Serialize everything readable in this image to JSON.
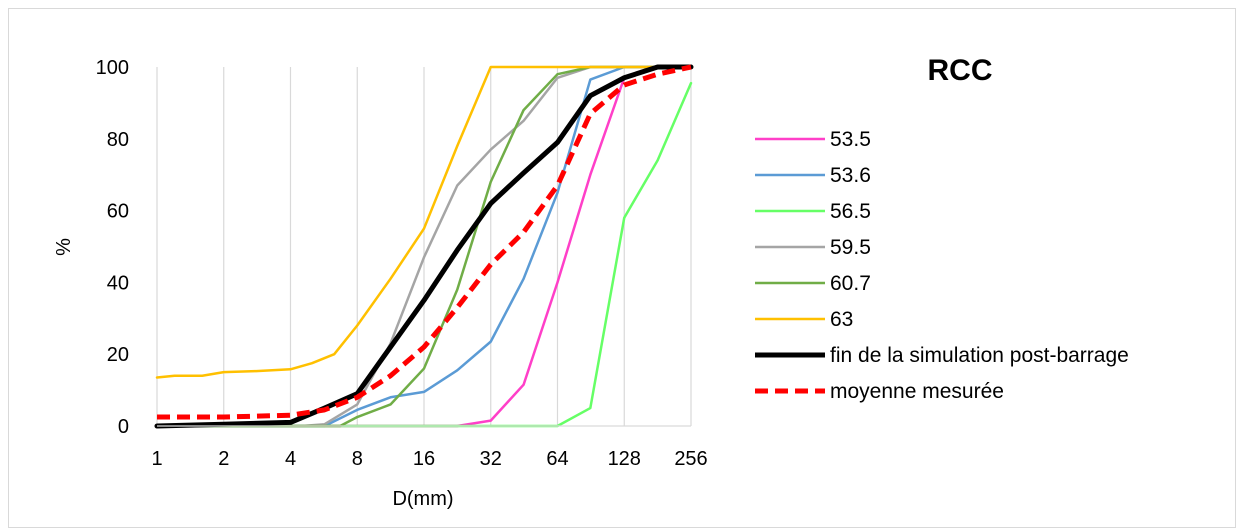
{
  "chart_data": {
    "type": "line",
    "title": "RCC",
    "xlabel": "D(mm)",
    "ylabel": "%",
    "x_scale": "log2",
    "xlim": [
      1,
      256
    ],
    "ylim": [
      0,
      100
    ],
    "x_ticks": [
      "1",
      "2",
      "4",
      "8",
      "16",
      "32",
      "64",
      "128",
      "256"
    ],
    "y_ticks": [
      "0",
      "20",
      "40",
      "60",
      "80",
      "100"
    ],
    "grid": "vertical",
    "legend_position": "right",
    "series": [
      {
        "name": "53.5",
        "color": "#ff3fc8",
        "width": 2.5,
        "dash": "",
        "points": [
          [
            1,
            0
          ],
          [
            22.6,
            0
          ],
          [
            32,
            1.5
          ],
          [
            45,
            11.5
          ],
          [
            64,
            40
          ],
          [
            90,
            70
          ],
          [
            128,
            97
          ],
          [
            181,
            100
          ],
          [
            256,
            100
          ]
        ]
      },
      {
        "name": "53.6",
        "color": "#5b9bd5",
        "width": 2.5,
        "dash": "",
        "points": [
          [
            1,
            0
          ],
          [
            4,
            0
          ],
          [
            5.7,
            0
          ],
          [
            8,
            4.5
          ],
          [
            11.3,
            8
          ],
          [
            16,
            9.5
          ],
          [
            22.6,
            15.5
          ],
          [
            32,
            23.5
          ],
          [
            45,
            41
          ],
          [
            64,
            65
          ],
          [
            90,
            96.5
          ],
          [
            128,
            100
          ],
          [
            181,
            100
          ],
          [
            256,
            100
          ]
        ]
      },
      {
        "name": "56.5",
        "color": "#66ff66",
        "width": 2.5,
        "dash": "",
        "points": [
          [
            1,
            0
          ],
          [
            64,
            0
          ],
          [
            90,
            5
          ],
          [
            128,
            58
          ],
          [
            181,
            74
          ],
          [
            256,
            95.5
          ]
        ]
      },
      {
        "name": "59.5",
        "color": "#a5a5a5",
        "width": 2.5,
        "dash": "",
        "points": [
          [
            1,
            0
          ],
          [
            4.5,
            0
          ],
          [
            5.7,
            0.5
          ],
          [
            8,
            6
          ],
          [
            11.3,
            23
          ],
          [
            16,
            47
          ],
          [
            22.6,
            67
          ],
          [
            32,
            77
          ],
          [
            45,
            85
          ],
          [
            64,
            97
          ],
          [
            90,
            100
          ],
          [
            128,
            100
          ],
          [
            181,
            100
          ],
          [
            256,
            100
          ]
        ]
      },
      {
        "name": "60.7",
        "color": "#70ad47",
        "width": 2.5,
        "dash": "",
        "points": [
          [
            1,
            0
          ],
          [
            6.7,
            0
          ],
          [
            8,
            2.5
          ],
          [
            11.3,
            6
          ],
          [
            16,
            16
          ],
          [
            22.6,
            38
          ],
          [
            32,
            68
          ],
          [
            45,
            88
          ],
          [
            64,
            98
          ],
          [
            90,
            100
          ],
          [
            128,
            100
          ],
          [
            181,
            100
          ],
          [
            256,
            100
          ]
        ]
      },
      {
        "name": "63",
        "color": "#ffc000",
        "width": 2.5,
        "dash": "",
        "points": [
          [
            1,
            13.5
          ],
          [
            1.2,
            14
          ],
          [
            1.6,
            14
          ],
          [
            2,
            15
          ],
          [
            2.8,
            15.3
          ],
          [
            4,
            15.8
          ],
          [
            5,
            17.5
          ],
          [
            6.3,
            20
          ],
          [
            8,
            28
          ],
          [
            11.3,
            41
          ],
          [
            16,
            55
          ],
          [
            22.6,
            78
          ],
          [
            32,
            100
          ],
          [
            64,
            100
          ],
          [
            128,
            100
          ],
          [
            256,
            100
          ]
        ]
      },
      {
        "name": "fin de la simulation post-barrage",
        "color": "#000000",
        "width": 5,
        "dash": "",
        "points": [
          [
            1,
            0
          ],
          [
            2,
            0.5
          ],
          [
            4,
            1
          ],
          [
            5.7,
            5
          ],
          [
            8,
            9
          ],
          [
            11.3,
            22
          ],
          [
            16,
            35
          ],
          [
            22.6,
            49
          ],
          [
            32,
            62
          ],
          [
            45,
            70.5
          ],
          [
            64,
            79
          ],
          [
            90,
            92
          ],
          [
            128,
            97
          ],
          [
            181,
            100
          ],
          [
            256,
            100
          ]
        ]
      },
      {
        "name": "moyenne mesurée",
        "color": "#ff0000",
        "width": 5,
        "dash": "13,7",
        "points": [
          [
            1,
            2.5
          ],
          [
            2,
            2.5
          ],
          [
            4,
            3
          ],
          [
            5.7,
            4.5
          ],
          [
            8,
            8
          ],
          [
            11.3,
            14
          ],
          [
            16,
            22
          ],
          [
            22.6,
            33
          ],
          [
            32,
            45
          ],
          [
            45,
            54
          ],
          [
            64,
            67
          ],
          [
            90,
            87
          ],
          [
            128,
            95
          ],
          [
            181,
            98
          ],
          [
            256,
            100
          ]
        ]
      }
    ]
  }
}
